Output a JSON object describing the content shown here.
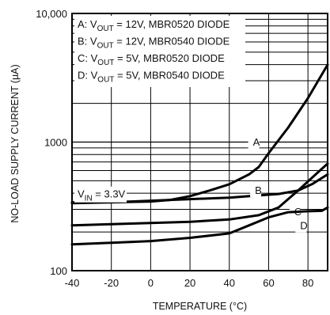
{
  "chart_data": {
    "type": "line",
    "title": "",
    "xlabel": "TEMPERATURE (°C)",
    "ylabel": "NO-LOAD SUPPLY CURRENT (µA)",
    "xlim": [
      -40,
      90
    ],
    "ylim": [
      100,
      10000
    ],
    "y_scale": "log",
    "grid": true,
    "x_ticks": [
      -40,
      -20,
      0,
      20,
      40,
      60,
      80
    ],
    "y_ticks": [
      {
        "value": 100,
        "label": "100"
      },
      {
        "value": 1000,
        "label": "1000"
      },
      {
        "value": 10000,
        "label": "10,000"
      }
    ],
    "legend": {
      "placement": "top-left",
      "entries": [
        {
          "key": "A",
          "text": "A: V<sub>OUT</sub> = 12V, MBR0520 DIODE"
        },
        {
          "key": "B",
          "text": "B: V<sub>OUT</sub> = 12V, MBR0540 DIODE"
        },
        {
          "key": "C",
          "text": "C: V<sub>OUT</sub> = 5V, MBR0520 DIODE"
        },
        {
          "key": "D",
          "text": "D: V<sub>OUT</sub> = 5V, MBR0540 DIODE"
        }
      ]
    },
    "annotation": "V<sub>IN</sub> = 3.3V",
    "series": [
      {
        "name": "A",
        "label_at": [
          52,
          940
        ],
        "points": [
          [
            -40,
            340
          ],
          [
            -20,
            340
          ],
          [
            0,
            345
          ],
          [
            10,
            355
          ],
          [
            20,
            380
          ],
          [
            30,
            420
          ],
          [
            40,
            470
          ],
          [
            50,
            560
          ],
          [
            55,
            640
          ],
          [
            60,
            820
          ],
          [
            70,
            1300
          ],
          [
            80,
            2200
          ],
          [
            90,
            4000
          ]
        ]
      },
      {
        "name": "B",
        "label_at": [
          53,
          395
        ],
        "points": [
          [
            -40,
            335
          ],
          [
            -20,
            340
          ],
          [
            0,
            350
          ],
          [
            20,
            360
          ],
          [
            40,
            370
          ],
          [
            55,
            385
          ],
          [
            65,
            395
          ],
          [
            75,
            420
          ],
          [
            82,
            470
          ],
          [
            90,
            560
          ]
        ]
      },
      {
        "name": "C",
        "label_at": [
          73,
          270
        ],
        "points": [
          [
            -40,
            225
          ],
          [
            -20,
            230
          ],
          [
            0,
            235
          ],
          [
            20,
            240
          ],
          [
            40,
            250
          ],
          [
            55,
            270
          ],
          [
            65,
            310
          ],
          [
            75,
            420
          ],
          [
            85,
            580
          ],
          [
            90,
            680
          ]
        ]
      },
      {
        "name": "D",
        "label_at": [
          76,
          210
        ],
        "points": [
          [
            -40,
            160
          ],
          [
            -20,
            165
          ],
          [
            0,
            170
          ],
          [
            20,
            180
          ],
          [
            40,
            195
          ],
          [
            50,
            225
          ],
          [
            60,
            260
          ],
          [
            70,
            285
          ],
          [
            80,
            290
          ],
          [
            87,
            292
          ],
          [
            90,
            310
          ]
        ]
      }
    ]
  }
}
